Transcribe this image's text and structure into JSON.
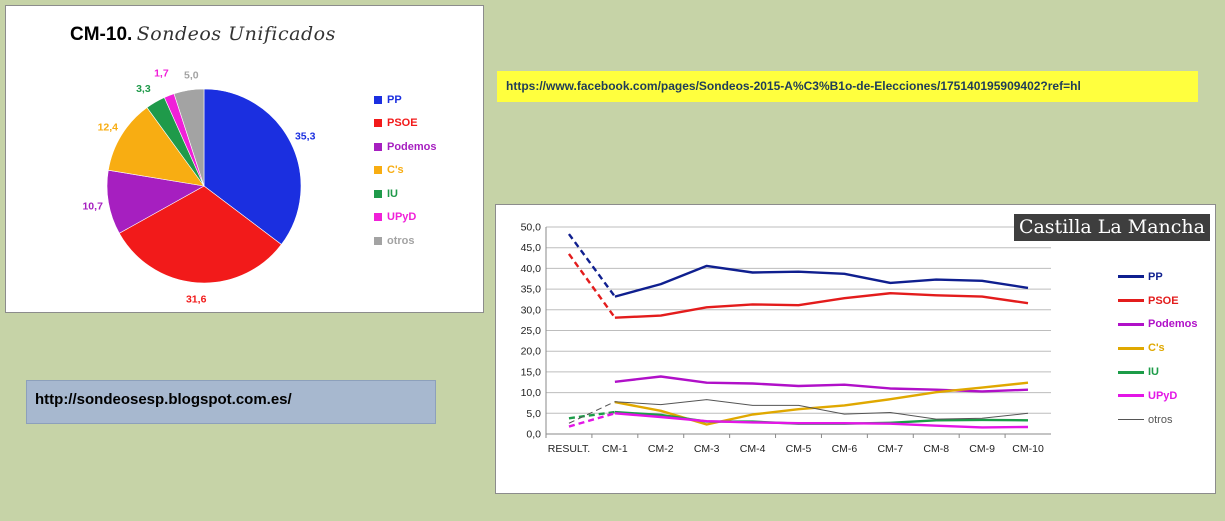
{
  "pie_title": "CM-10.",
  "pie_subtitle": "Sondeos Unificados",
  "line_title": "Castilla La Mancha",
  "facebook_link": "https://www.facebook.com/pages/Sondeos-2015-A%C3%B1o-de-Elecciones/175140195909402?ref=hl",
  "blog_link": "http://sondeosesp.blogspot.com.es/",
  "chart_data": [
    {
      "type": "pie",
      "title": "CM-10.",
      "subtitle": "Sondeos Unificados",
      "labels": [
        "PP",
        "PSOE",
        "Podemos",
        "C's",
        "IU",
        "UPyD",
        "otros"
      ],
      "values": [
        35.3,
        31.6,
        10.7,
        12.4,
        3.3,
        1.7,
        5.0
      ],
      "value_labels": [
        "35,3",
        "31,6",
        "10,7",
        "12,4",
        "3,3",
        "1,7",
        "5,0"
      ],
      "colors": [
        "#1b2fe0",
        "#f21a1a",
        "#a61fc0",
        "#f8ad12",
        "#1f9a4a",
        "#f020d8",
        "#a3a3a3"
      ],
      "legend_position": "right"
    },
    {
      "type": "line",
      "title": "Castilla La Mancha",
      "categories": [
        "RESULT.",
        "CM-1",
        "CM-2",
        "CM-3",
        "CM-4",
        "CM-5",
        "CM-6",
        "CM-7",
        "CM-8",
        "CM-9",
        "CM-10"
      ],
      "ylim": [
        0,
        50
      ],
      "yticks": [
        "0,0",
        "5,0",
        "10,0",
        "15,0",
        "20,0",
        "25,0",
        "30,0",
        "35,0",
        "40,0",
        "45,0",
        "50,0"
      ],
      "grid": true,
      "legend_position": "right",
      "note": "segment RESULT. to CM-1 drawn dashed",
      "series": [
        {
          "name": "PP",
          "color": "#0f1f8f",
          "values": [
            48.3,
            33.2,
            36.2,
            40.6,
            39.0,
            39.2,
            38.7,
            36.5,
            37.3,
            37.0,
            35.3
          ]
        },
        {
          "name": "PSOE",
          "color": "#e31c1c",
          "values": [
            43.5,
            28.1,
            28.6,
            30.6,
            31.3,
            31.1,
            32.8,
            34.0,
            33.5,
            33.2,
            31.6
          ]
        },
        {
          "name": "Podemos",
          "color": "#b010c8",
          "values": [
            null,
            12.6,
            13.9,
            12.4,
            12.2,
            11.6,
            11.9,
            11.0,
            10.7,
            10.3,
            10.7
          ]
        },
        {
          "name": "C's",
          "color": "#e0a800",
          "values": [
            null,
            7.7,
            5.6,
            2.3,
            4.7,
            6.0,
            6.9,
            8.4,
            10.1,
            11.2,
            12.4
          ]
        },
        {
          "name": "IU",
          "color": "#1c9c48",
          "values": [
            3.8,
            5.3,
            4.6,
            3.0,
            3.0,
            2.5,
            2.5,
            2.7,
            3.3,
            3.4,
            3.3
          ]
        },
        {
          "name": "UPyD",
          "color": "#e316e6",
          "values": [
            1.8,
            5.0,
            4.1,
            3.1,
            2.8,
            2.6,
            2.6,
            2.5,
            2.0,
            1.6,
            1.7
          ]
        },
        {
          "name": "otros",
          "color": "#555555",
          "values": [
            2.6,
            7.8,
            7.1,
            8.3,
            6.9,
            6.9,
            4.8,
            5.2,
            3.6,
            3.8,
            5.0
          ]
        }
      ]
    }
  ]
}
